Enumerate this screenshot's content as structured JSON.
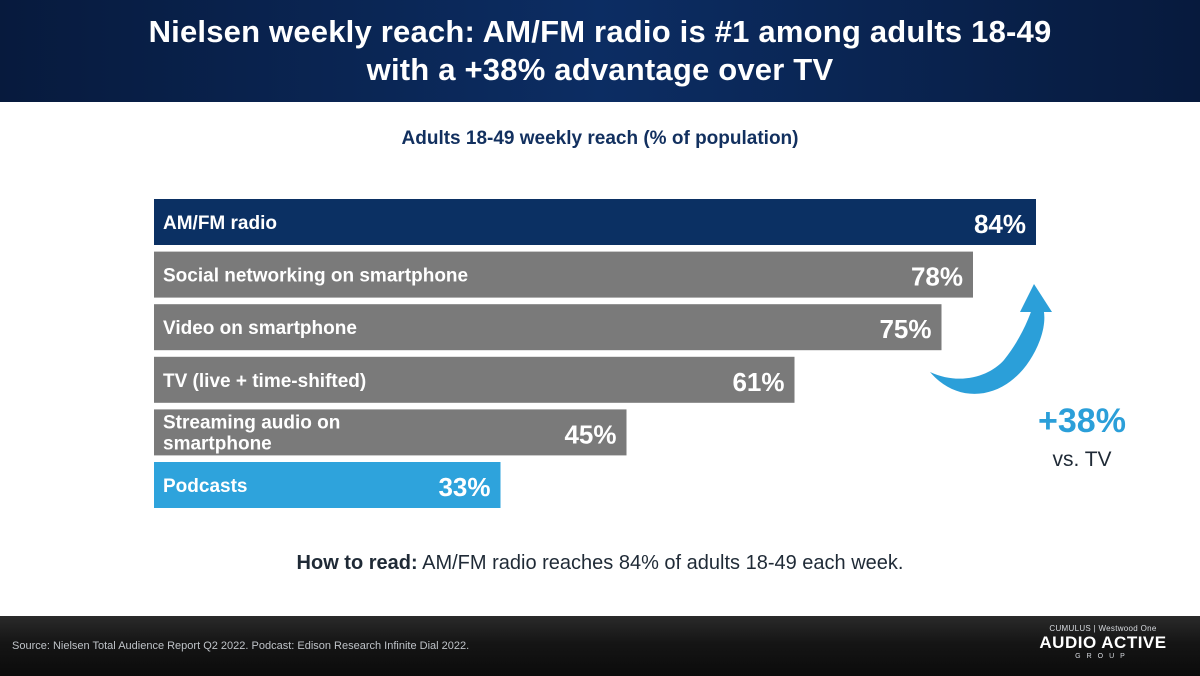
{
  "header": {
    "title_line1": "Nielsen weekly reach: AM/FM radio is #1 among adults 18-49",
    "title_line2": "with a +38% advantage over TV"
  },
  "chart_data": {
    "type": "bar",
    "orientation": "horizontal",
    "title": "Adults 18-49 weekly reach (% of population)",
    "categories": [
      "AM/FM radio",
      "Social networking on smartphone",
      "Video on smartphone",
      "TV (live + time-shifted)",
      "Streaming audio on smartphone",
      "Podcasts"
    ],
    "values": [
      84,
      78,
      75,
      61,
      45,
      33
    ],
    "value_labels": [
      "84%",
      "78%",
      "75%",
      "61%",
      "45%",
      "33%"
    ],
    "unit": "%",
    "xlim": [
      0,
      84
    ],
    "colors": [
      "#0b3063",
      "#7a7a7a",
      "#7a7a7a",
      "#7a7a7a",
      "#7a7a7a",
      "#2ea3dc"
    ],
    "grid": false,
    "legend": "none",
    "annotation": {
      "value": "+38%",
      "label": "vs. TV",
      "color": "#2b9fd9"
    }
  },
  "how_to_read": {
    "prefix": "How to read:",
    "text": " AM/FM radio reaches 84% of adults 18-49 each week."
  },
  "footer": {
    "source": "Source: Nielsen Total Audience Report Q2 2022. Podcast: Edison Research Infinite Dial 2022.",
    "logo_small": "CUMULUS | Westwood One",
    "logo_big": "AUDIO ACTIVE",
    "logo_group": "GROUP"
  }
}
